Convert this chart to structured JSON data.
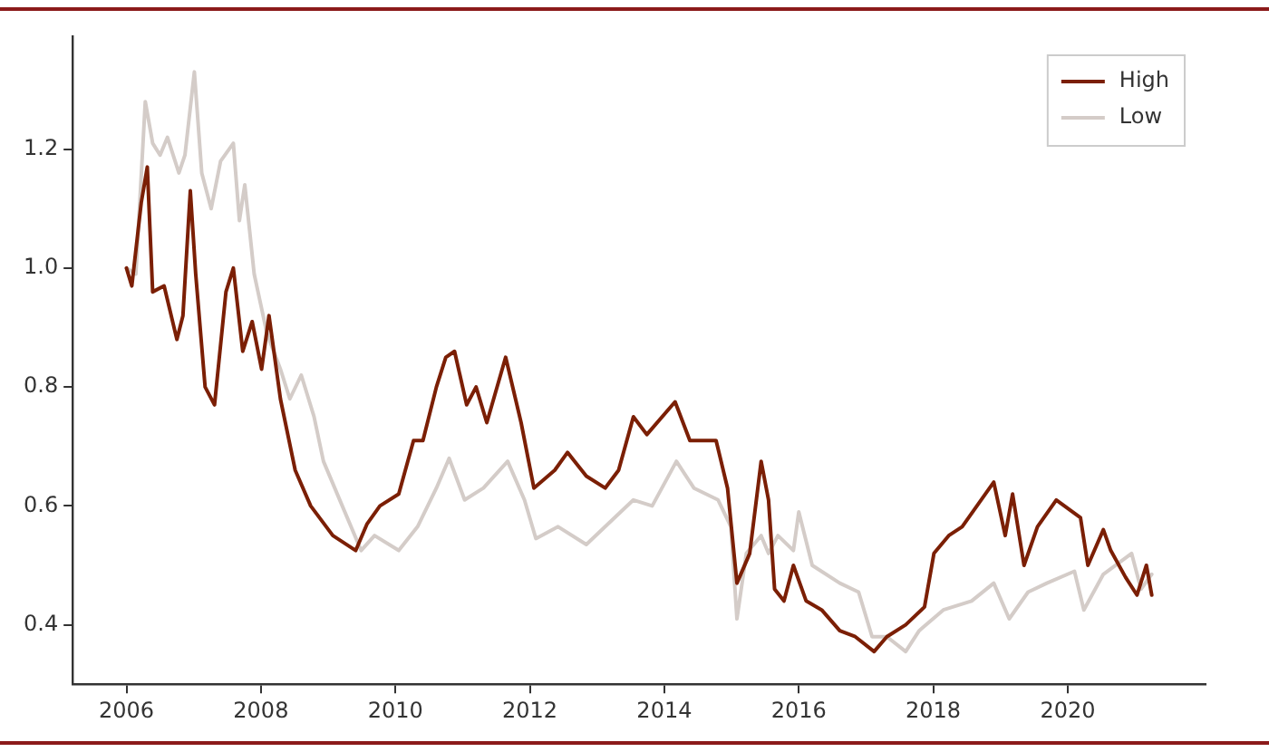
{
  "chart_data": {
    "type": "line",
    "xlim": [
      2005.2,
      2022.05
    ],
    "xticks": [
      2006,
      2008,
      2010,
      2012,
      2014,
      2016,
      2018,
      2020
    ],
    "ylim": [
      0.3,
      1.39
    ],
    "yticks": [
      {
        "value": 0.4,
        "label": "0.4"
      },
      {
        "value": 0.6,
        "label": "0.6"
      },
      {
        "value": 0.8,
        "label": "0.8"
      },
      {
        "value": 1.0,
        "label": "1.0"
      },
      {
        "value": 1.2,
        "label": "1.2"
      }
    ],
    "grid": false,
    "legend": "top right",
    "marker": "none",
    "line_style": "solid",
    "series": [
      {
        "name": "High",
        "color": "#7b1f05",
        "x": [
          2006.0,
          2006.08,
          2006.22,
          2006.31,
          2006.39,
          2006.56,
          2006.75,
          2006.84,
          2006.95,
          2007.03,
          2007.17,
          2007.31,
          2007.48,
          2007.59,
          2007.73,
          2007.87,
          2008.01,
          2008.12,
          2008.29,
          2008.51,
          2008.74,
          2009.07,
          2009.41,
          2009.58,
          2009.77,
          2010.05,
          2010.27,
          2010.41,
          2010.61,
          2010.75,
          2010.88,
          2011.06,
          2011.2,
          2011.36,
          2011.64,
          2011.87,
          2012.06,
          2012.37,
          2012.56,
          2012.84,
          2013.12,
          2013.32,
          2013.54,
          2013.74,
          2014.16,
          2014.38,
          2014.77,
          2014.94,
          2015.08,
          2015.27,
          2015.44,
          2015.55,
          2015.64,
          2015.78,
          2015.92,
          2016.11,
          2016.34,
          2016.61,
          2016.84,
          2017.12,
          2017.31,
          2017.59,
          2017.87,
          2018.01,
          2018.23,
          2018.43,
          2018.9,
          2019.07,
          2019.18,
          2019.35,
          2019.55,
          2019.83,
          2020.19,
          2020.3,
          2020.53,
          2020.64,
          2020.86,
          2021.03,
          2021.17,
          2021.25
        ],
        "values": [
          1.0,
          0.97,
          1.11,
          1.17,
          0.96,
          0.97,
          0.88,
          0.92,
          1.13,
          0.99,
          0.8,
          0.77,
          0.96,
          1.0,
          0.86,
          0.91,
          0.83,
          0.92,
          0.78,
          0.66,
          0.6,
          0.55,
          0.525,
          0.57,
          0.6,
          0.62,
          0.71,
          0.71,
          0.8,
          0.85,
          0.86,
          0.77,
          0.8,
          0.74,
          0.85,
          0.74,
          0.63,
          0.66,
          0.69,
          0.65,
          0.63,
          0.66,
          0.75,
          0.72,
          0.775,
          0.71,
          0.71,
          0.63,
          0.47,
          0.52,
          0.675,
          0.61,
          0.46,
          0.44,
          0.5,
          0.44,
          0.425,
          0.39,
          0.38,
          0.355,
          0.38,
          0.4,
          0.43,
          0.52,
          0.55,
          0.565,
          0.64,
          0.55,
          0.62,
          0.5,
          0.565,
          0.61,
          0.58,
          0.5,
          0.56,
          0.525,
          0.48,
          0.45,
          0.5,
          0.45
        ]
      },
      {
        "name": "Low",
        "color": "#d4ccc8",
        "x": [
          2006.0,
          2006.14,
          2006.28,
          2006.39,
          2006.5,
          2006.61,
          2006.78,
          2006.87,
          2007.01,
          2007.12,
          2007.26,
          2007.4,
          2007.59,
          2007.68,
          2007.76,
          2007.9,
          2008.09,
          2008.29,
          2008.43,
          2008.6,
          2008.79,
          2008.93,
          2009.21,
          2009.49,
          2009.69,
          2010.05,
          2010.33,
          2010.61,
          2010.8,
          2011.03,
          2011.31,
          2011.67,
          2011.92,
          2012.09,
          2012.42,
          2012.84,
          2013.12,
          2013.54,
          2013.82,
          2014.18,
          2014.44,
          2014.8,
          2014.99,
          2015.08,
          2015.22,
          2015.44,
          2015.55,
          2015.69,
          2015.92,
          2016.0,
          2016.2,
          2016.61,
          2016.89,
          2017.09,
          2017.31,
          2017.59,
          2017.79,
          2018.15,
          2018.57,
          2018.9,
          2019.13,
          2019.41,
          2019.69,
          2020.1,
          2020.24,
          2020.53,
          2020.95,
          2021.09,
          2021.25
        ],
        "values": [
          1.0,
          0.99,
          1.28,
          1.21,
          1.19,
          1.22,
          1.16,
          1.19,
          1.33,
          1.16,
          1.1,
          1.18,
          1.21,
          1.08,
          1.14,
          0.99,
          0.89,
          0.83,
          0.78,
          0.82,
          0.75,
          0.675,
          0.6,
          0.525,
          0.55,
          0.525,
          0.565,
          0.63,
          0.68,
          0.61,
          0.63,
          0.675,
          0.61,
          0.545,
          0.565,
          0.535,
          0.565,
          0.61,
          0.6,
          0.675,
          0.63,
          0.61,
          0.565,
          0.41,
          0.52,
          0.55,
          0.52,
          0.55,
          0.525,
          0.59,
          0.5,
          0.47,
          0.455,
          0.38,
          0.38,
          0.355,
          0.39,
          0.425,
          0.44,
          0.47,
          0.41,
          0.455,
          0.47,
          0.49,
          0.425,
          0.485,
          0.52,
          0.46,
          0.485
        ]
      }
    ]
  }
}
